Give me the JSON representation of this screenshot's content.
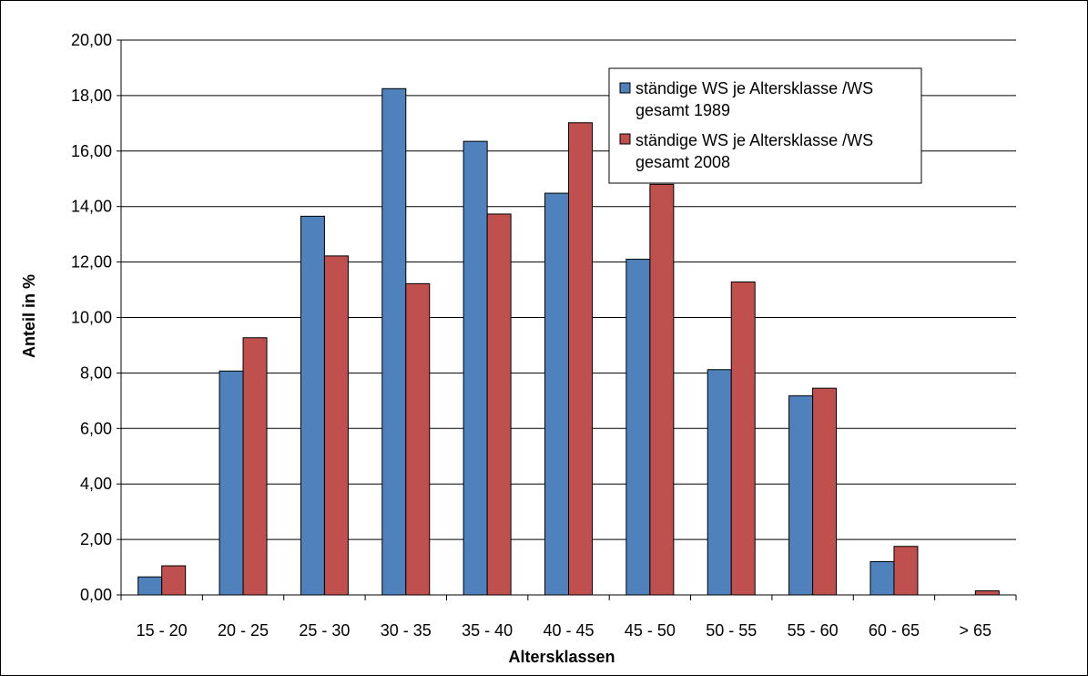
{
  "chart_data": {
    "type": "bar",
    "categories": [
      "15 - 20",
      "20 - 25",
      "25 - 30",
      "30 - 35",
      "35 - 40",
      "40 - 45",
      "45 - 50",
      "50 - 55",
      "55 - 60",
      "60 - 65",
      "> 65"
    ],
    "series": [
      {
        "name": "ständige WS je Altersklasse /WS gesamt 1989",
        "name_lines": [
          "ständige WS je Altersklasse /WS",
          "gesamt 1989"
        ],
        "color": "#4F81BD",
        "values": [
          0.65,
          8.07,
          13.65,
          18.25,
          16.35,
          14.48,
          12.1,
          8.12,
          7.18,
          1.2,
          0.0
        ]
      },
      {
        "name": "ständige WS je Altersklasse /WS gesamt 2008",
        "name_lines": [
          "ständige WS je Altersklasse /WS",
          "gesamt 2008"
        ],
        "color": "#C0504D",
        "values": [
          1.05,
          9.27,
          12.22,
          11.22,
          13.73,
          17.02,
          14.8,
          11.28,
          7.45,
          1.75,
          0.15
        ]
      }
    ],
    "xlabel": "Altersklassen",
    "ylabel": "Anteil in %",
    "ylim": [
      0,
      20
    ],
    "yticks": [
      "0,00",
      "2,00",
      "4,00",
      "6,00",
      "8,00",
      "10,00",
      "12,00",
      "14,00",
      "16,00",
      "18,00",
      "20,00"
    ],
    "grid": true,
    "legend_position": "top-right"
  }
}
